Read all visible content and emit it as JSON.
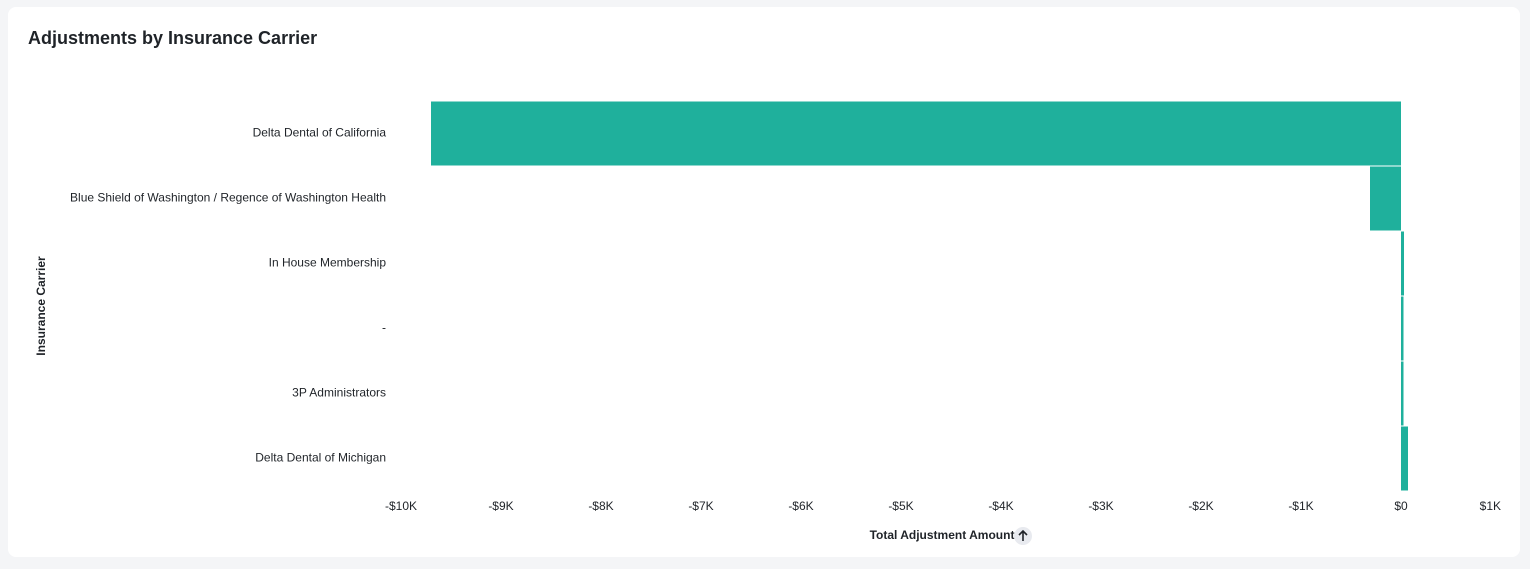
{
  "chart_data": {
    "type": "hbar",
    "title": "Adjustments by Insurance Carrier",
    "x_label": "Total Adjustment Amount",
    "y_label": "Insurance Carrier",
    "categories": [
      "Delta Dental of California",
      "Blue Shield of Washington / Regence of Washington Health",
      "In House Membership",
      "-",
      "3P Administrators",
      "Delta Dental of Michigan"
    ],
    "values": [
      -9700,
      -310,
      30,
      25,
      25,
      70
    ],
    "color": "#1fb09c",
    "xlim": [
      -10000,
      1000
    ],
    "xticks": [
      {
        "value": -10000,
        "label": "-$10K"
      },
      {
        "value": -9000,
        "label": "-$9K"
      },
      {
        "value": -8000,
        "label": "-$8K"
      },
      {
        "value": -7000,
        "label": "-$7K"
      },
      {
        "value": -6000,
        "label": "-$6K"
      },
      {
        "value": -5000,
        "label": "-$5K"
      },
      {
        "value": -4000,
        "label": "-$4K"
      },
      {
        "value": -3000,
        "label": "-$3K"
      },
      {
        "value": -2000,
        "label": "-$2K"
      },
      {
        "value": -1000,
        "label": "-$1K"
      },
      {
        "value": 0,
        "label": "$0"
      },
      {
        "value": 1000,
        "label": "$1K"
      }
    ]
  }
}
